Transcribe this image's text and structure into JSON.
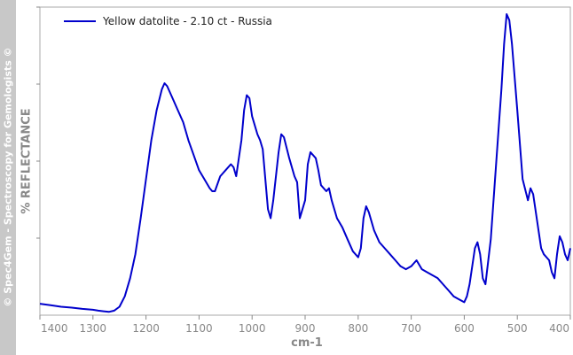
{
  "watermark": "© Spec4Gem - Spectroscopy for Gemologists ©",
  "chart_data": {
    "type": "line",
    "xlabel": "cm-1",
    "ylabel": "% REFLECTANCE",
    "xlim": [
      1400,
      400
    ],
    "x_reversed": true,
    "x_ticks": [
      1400,
      1300,
      1200,
      1100,
      1000,
      900,
      800,
      700,
      600,
      500,
      400
    ],
    "y_tick_count": 4,
    "y_tick_labels_shown": false,
    "ylim": [
      0,
      100
    ],
    "grid": false,
    "legend_position": "top-left",
    "series_color": "#0000cc",
    "series": [
      {
        "name": "Yellow datolite - 2.10 ct - Russia",
        "x": [
          1400,
          1380,
          1360,
          1340,
          1320,
          1300,
          1290,
          1280,
          1270,
          1260,
          1250,
          1240,
          1230,
          1220,
          1210,
          1200,
          1190,
          1180,
          1170,
          1165,
          1160,
          1150,
          1140,
          1130,
          1120,
          1110,
          1100,
          1090,
          1080,
          1075,
          1070,
          1060,
          1050,
          1040,
          1035,
          1030,
          1020,
          1015,
          1010,
          1005,
          1000,
          990,
          985,
          980,
          970,
          965,
          960,
          950,
          945,
          940,
          930,
          920,
          915,
          910,
          900,
          895,
          890,
          880,
          875,
          870,
          860,
          855,
          850,
          840,
          830,
          820,
          810,
          800,
          795,
          790,
          785,
          780,
          770,
          760,
          750,
          740,
          730,
          720,
          710,
          700,
          695,
          690,
          680,
          670,
          660,
          650,
          640,
          630,
          620,
          610,
          600,
          595,
          590,
          580,
          575,
          570,
          565,
          560,
          550,
          540,
          530,
          525,
          520,
          515,
          510,
          500,
          490,
          480,
          475,
          470,
          460,
          455,
          450,
          440,
          435,
          430,
          425,
          420,
          415,
          410,
          405,
          400
        ],
        "y": [
          3.5,
          3,
          2.5,
          2.2,
          1.8,
          1.5,
          1.2,
          1,
          0.8,
          1.2,
          2.5,
          6,
          12,
          20,
          32,
          45,
          58,
          68,
          75,
          77,
          76,
          72,
          68,
          64,
          58,
          53,
          48,
          45,
          42,
          41,
          41,
          46,
          48,
          50,
          49,
          46,
          58,
          68,
          73,
          72,
          66,
          60,
          58,
          55,
          35,
          32,
          38,
          54,
          60,
          59,
          52,
          46,
          44,
          32,
          38,
          50,
          54,
          52,
          48,
          43,
          41,
          42,
          38,
          32,
          29,
          25,
          21,
          19,
          22,
          32,
          36,
          34,
          28,
          24,
          22,
          20,
          18,
          16,
          15,
          16,
          17,
          18,
          15,
          14,
          13,
          12,
          10,
          8,
          6,
          5,
          4,
          6,
          10,
          22,
          24,
          20,
          12,
          10,
          25,
          50,
          75,
          90,
          100,
          98,
          90,
          68,
          45,
          38,
          42,
          40,
          28,
          22,
          20,
          18,
          14,
          12,
          20,
          26,
          24,
          20,
          18,
          22
        ]
      }
    ]
  }
}
